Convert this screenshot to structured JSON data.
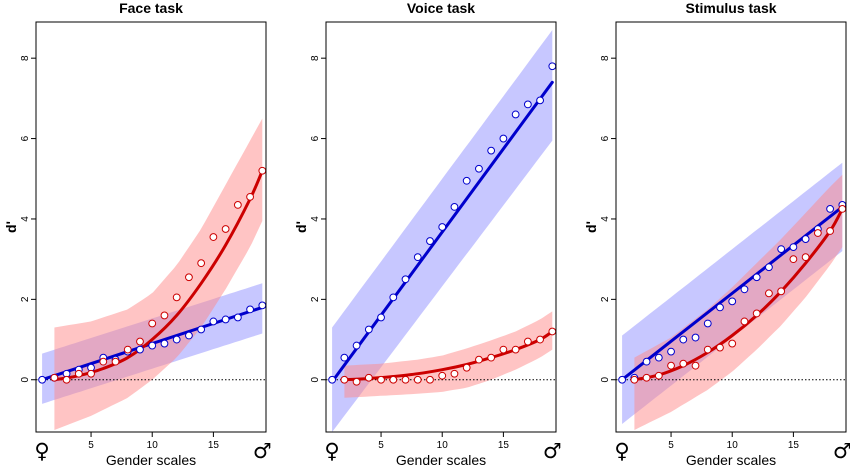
{
  "figure": {
    "xlabel": "Gender scales",
    "ylabel": "d'",
    "female_symbol": "♀",
    "male_symbol": "♂",
    "x_ticks": [
      5,
      10,
      15
    ],
    "y_ticks": [
      0,
      2,
      4,
      6,
      8
    ],
    "xlim": [
      0.5,
      19.3
    ],
    "ylim": [
      -1.3,
      8.9
    ]
  },
  "colors": {
    "blue": "#0000cc",
    "red": "#cc0000",
    "blue_band": "#9999ff",
    "red_band": "#ff8a8a"
  },
  "chart_data": [
    {
      "type": "scatter",
      "title": "Face task",
      "xlabel": "Gender scales",
      "ylabel": "d'",
      "xlim": [
        0.5,
        19.3
      ],
      "ylim": [
        -1.3,
        8.9
      ],
      "reference_line_y": 0,
      "series": [
        {
          "color": "blue",
          "x": [
            1,
            2,
            3,
            4,
            5,
            6,
            7,
            8,
            9,
            10,
            11,
            12,
            13,
            14,
            15,
            16,
            17,
            18,
            19
          ],
          "points": [
            0.0,
            0.05,
            0.15,
            0.25,
            0.3,
            0.55,
            0.5,
            0.7,
            0.75,
            0.85,
            0.9,
            1.0,
            1.1,
            1.25,
            1.45,
            1.5,
            1.55,
            1.75,
            1.85
          ],
          "fit": {
            "x": [
              1,
              19
            ],
            "y": [
              0.0,
              1.8
            ]
          },
          "band": {
            "x": [
              1,
              19
            ],
            "lower": [
              -0.6,
              1.15
            ],
            "upper": [
              0.65,
              2.4
            ]
          }
        },
        {
          "color": "red",
          "x": [
            2,
            3,
            4,
            5,
            6,
            7,
            8,
            9,
            10,
            11,
            12,
            13,
            14,
            15,
            16,
            17,
            18,
            19
          ],
          "points": [
            0.05,
            0.0,
            0.15,
            0.15,
            0.45,
            0.45,
            0.75,
            0.95,
            1.4,
            1.6,
            2.05,
            2.55,
            2.9,
            3.55,
            3.75,
            4.35,
            4.55,
            5.2
          ],
          "fit": {
            "x": [
              2,
              4,
              6,
              8,
              10,
              12,
              14,
              16,
              18,
              19
            ],
            "y": [
              0.0,
              0.1,
              0.28,
              0.55,
              1.0,
              1.6,
              2.4,
              3.35,
              4.5,
              5.2
            ]
          },
          "band": {
            "x": [
              2,
              5,
              8,
              10,
              12,
              14,
              16,
              18,
              19
            ],
            "lower": [
              -1.25,
              -0.9,
              -0.45,
              0.0,
              0.55,
              1.3,
              2.25,
              3.3,
              3.95
            ],
            "upper": [
              1.3,
              1.45,
              1.75,
              2.15,
              2.85,
              3.75,
              4.85,
              5.95,
              6.5
            ]
          }
        }
      ]
    },
    {
      "type": "scatter",
      "title": "Voice task",
      "xlabel": "Gender scales",
      "ylabel": "d'",
      "xlim": [
        0.5,
        19.3
      ],
      "ylim": [
        -1.3,
        8.9
      ],
      "reference_line_y": 0,
      "series": [
        {
          "color": "blue",
          "x": [
            1,
            2,
            3,
            4,
            5,
            6,
            7,
            8,
            9,
            10,
            11,
            12,
            13,
            14,
            15,
            16,
            17,
            18,
            19
          ],
          "points": [
            0.0,
            0.55,
            0.85,
            1.25,
            1.55,
            2.05,
            2.5,
            3.05,
            3.45,
            3.8,
            4.3,
            4.95,
            5.25,
            5.7,
            6.0,
            6.6,
            6.85,
            6.95,
            7.8
          ],
          "fit": {
            "x": [
              1,
              19
            ],
            "y": [
              -0.05,
              7.4
            ]
          },
          "band": {
            "x": [
              1,
              19
            ],
            "lower": [
              -1.3,
              5.95
            ],
            "upper": [
              1.3,
              8.7
            ]
          }
        },
        {
          "color": "red",
          "x": [
            2,
            3,
            4,
            5,
            6,
            7,
            8,
            9,
            10,
            11,
            12,
            13,
            14,
            15,
            16,
            17,
            18,
            19
          ],
          "points": [
            0.0,
            -0.05,
            0.05,
            0.0,
            0.0,
            0.0,
            0.0,
            0.0,
            0.1,
            0.15,
            0.3,
            0.5,
            0.55,
            0.75,
            0.75,
            0.95,
            1.0,
            1.2
          ],
          "fit": {
            "x": [
              2,
              4,
              6,
              8,
              10,
              12,
              14,
              16,
              18,
              19
            ],
            "y": [
              0.0,
              0.03,
              0.08,
              0.15,
              0.25,
              0.38,
              0.55,
              0.75,
              1.0,
              1.2
            ]
          },
          "band": {
            "x": [
              2,
              5,
              8,
              10,
              12,
              14,
              16,
              18,
              19
            ],
            "lower": [
              -0.45,
              -0.4,
              -0.35,
              -0.3,
              -0.2,
              0.0,
              0.25,
              0.55,
              0.75
            ],
            "upper": [
              0.35,
              0.4,
              0.5,
              0.6,
              0.78,
              0.98,
              1.2,
              1.5,
              1.7
            ]
          }
        }
      ]
    },
    {
      "type": "scatter",
      "title": "Stimulus task",
      "xlabel": "Gender scales",
      "ylabel": "d'",
      "xlim": [
        0.5,
        19.3
      ],
      "ylim": [
        -1.3,
        8.9
      ],
      "reference_line_y": 0,
      "series": [
        {
          "color": "blue",
          "x": [
            1,
            2,
            3,
            4,
            5,
            6,
            7,
            8,
            9,
            10,
            11,
            12,
            13,
            14,
            15,
            16,
            17,
            18,
            19
          ],
          "points": [
            0.0,
            0.05,
            0.45,
            0.55,
            0.7,
            1.0,
            1.05,
            1.4,
            1.8,
            1.95,
            2.25,
            2.55,
            2.8,
            3.25,
            3.3,
            3.5,
            3.75,
            4.25,
            4.35
          ],
          "fit": {
            "x": [
              1,
              19
            ],
            "y": [
              0.0,
              4.3
            ]
          },
          "band": {
            "x": [
              1,
              19
            ],
            "lower": [
              -1.1,
              3.2
            ],
            "upper": [
              1.1,
              5.4
            ]
          }
        },
        {
          "color": "red",
          "x": [
            2,
            3,
            4,
            5,
            6,
            7,
            8,
            9,
            10,
            11,
            12,
            13,
            14,
            15,
            16,
            17,
            18,
            19
          ],
          "points": [
            0.0,
            0.05,
            0.1,
            0.35,
            0.4,
            0.35,
            0.75,
            0.8,
            0.9,
            1.45,
            1.65,
            2.15,
            2.2,
            3.0,
            3.05,
            3.65,
            3.7,
            4.25
          ],
          "fit": {
            "x": [
              2,
              4,
              6,
              8,
              10,
              12,
              14,
              16,
              18,
              19
            ],
            "y": [
              0.0,
              0.12,
              0.35,
              0.68,
              1.1,
              1.6,
              2.2,
              2.9,
              3.7,
              4.25
            ]
          },
          "band": {
            "x": [
              2,
              5,
              8,
              10,
              12,
              14,
              16,
              18,
              19
            ],
            "lower": [
              -1.25,
              -0.8,
              -0.25,
              0.2,
              0.75,
              1.35,
              2.05,
              2.85,
              3.3
            ],
            "upper": [
              0.55,
              1.05,
              1.75,
              2.3,
              2.9,
              3.5,
              4.15,
              4.8,
              5.1
            ]
          }
        }
      ]
    }
  ]
}
